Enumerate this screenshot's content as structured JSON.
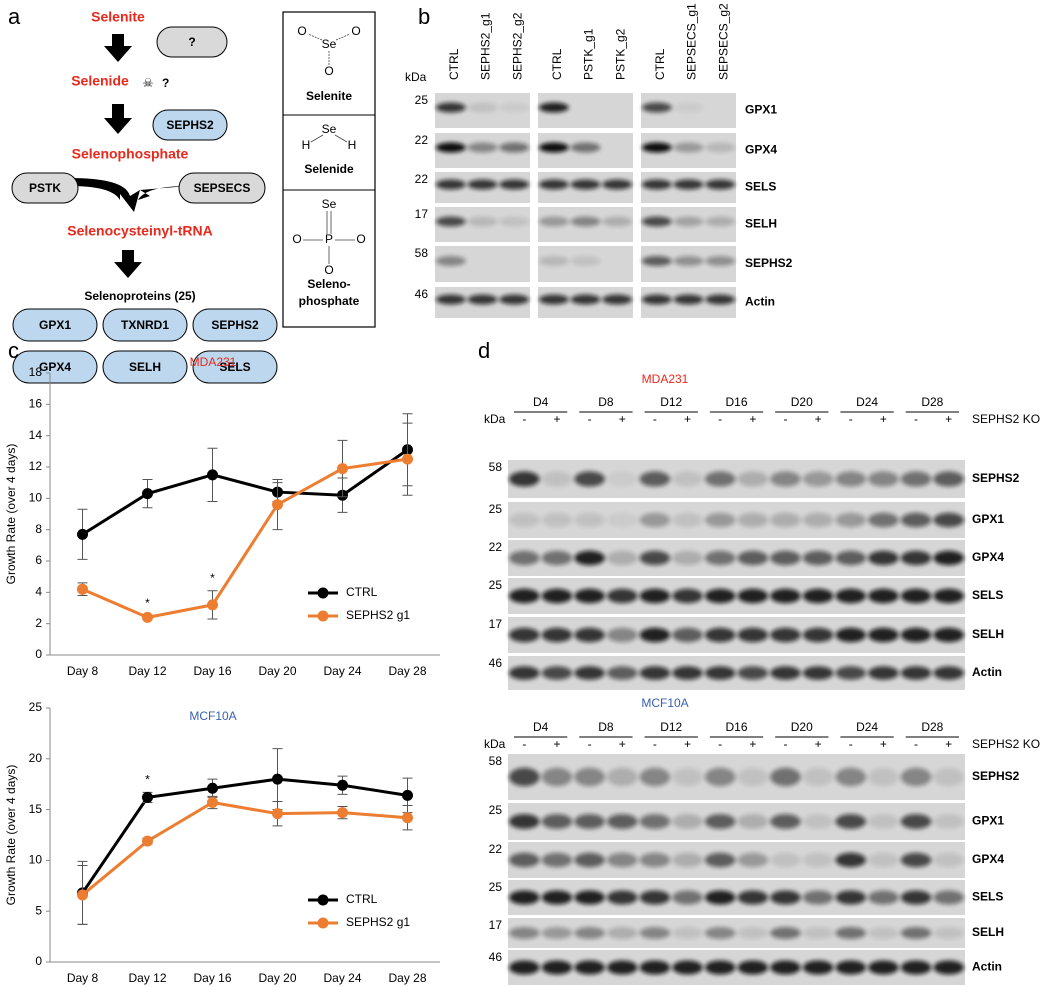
{
  "panel_a": {
    "label": "a",
    "steps": [
      "Selenite",
      "Selenide",
      "Selenophosphate",
      "Selenocysteinyl-tRNA",
      "Selenoproteins (25)"
    ],
    "unknown": "?",
    "toxic_mark": "?",
    "enzymes": [
      "SEPHS2",
      "PSTK",
      "SEPSECS"
    ],
    "selenoproteins": [
      "GPX1",
      "TXNRD1",
      "SEPHS2",
      "GPX4",
      "SELH",
      "SELS"
    ],
    "structures": [
      {
        "name": [
          "Selenite"
        ],
        "atoms": [
          "Se",
          "O",
          "O",
          "O"
        ]
      },
      {
        "name": [
          "Selenide"
        ],
        "atoms": [
          "Se",
          "H",
          "H"
        ]
      },
      {
        "name": [
          "Seleno-",
          "phosphate"
        ],
        "atoms": [
          "Se",
          "P",
          "O",
          "O",
          "O"
        ]
      }
    ]
  },
  "panel_b": {
    "label": "b",
    "kda": "kDa",
    "groups": [
      [
        "CTRL",
        "SEPHS2_g1",
        "SEPHS2_g2"
      ],
      [
        "CTRL",
        "PSTK_g1",
        "PSTK_g2"
      ],
      [
        "CTRL",
        "SEPSECS_g1",
        "SEPSECS_g2"
      ]
    ],
    "rows": [
      {
        "protein": "GPX1",
        "marker": 25
      },
      {
        "protein": "GPX4",
        "marker": 22
      },
      {
        "protein": "SELS",
        "marker": 22
      },
      {
        "protein": "SELH",
        "marker": 17
      },
      {
        "protein": "SEPHS2",
        "marker": 58
      },
      {
        "protein": "Actin",
        "marker": 46
      }
    ]
  },
  "panel_c": {
    "label": "c"
  },
  "chart_data": [
    {
      "type": "line",
      "title": "MDA231",
      "title_color": "#e8291c",
      "ylabel": "Growth Rate (over 4 days)",
      "categories": [
        "Day 8",
        "Day 12",
        "Day 16",
        "Day 20",
        "Day 24",
        "Day 28"
      ],
      "series": [
        {
          "name": "CTRL",
          "color": "#000000",
          "values": [
            7.7,
            10.3,
            11.5,
            10.4,
            10.2,
            13.1
          ],
          "errors": [
            1.6,
            0.9,
            1.7,
            0.6,
            1.1,
            2.3
          ]
        },
        {
          "name": "SEPHS2 g1",
          "color": "#ed7d31",
          "values": [
            4.2,
            2.4,
            3.2,
            9.6,
            11.9,
            12.5
          ],
          "errors": [
            0.4,
            0.1,
            0.9,
            1.6,
            1.8,
            2.3
          ]
        }
      ],
      "ylim": [
        0,
        18
      ],
      "yticks": [
        0,
        2,
        4,
        6,
        8,
        10,
        12,
        14,
        16,
        18
      ],
      "legend": "lower right",
      "annotations": [
        {
          "text": "*",
          "x": "Day 12",
          "series": "SEPHS2 g1"
        },
        {
          "text": "*",
          "x": "Day 16",
          "series": "SEPHS2 g1"
        }
      ]
    },
    {
      "type": "line",
      "title": "MCF10A",
      "title_color": "#3a5fb0",
      "ylabel": "Growth Rate (over 4 days)",
      "categories": [
        "Day 8",
        "Day 12",
        "Day 16",
        "Day 20",
        "Day 24",
        "Day 28"
      ],
      "series": [
        {
          "name": "CTRL",
          "color": "#000000",
          "values": [
            6.8,
            16.2,
            17.1,
            18.0,
            17.4,
            16.4
          ],
          "errors": [
            3.1,
            0.5,
            0.9,
            3.0,
            0.9,
            1.7
          ]
        },
        {
          "name": "SEPHS2 g1",
          "color": "#ed7d31",
          "values": [
            6.6,
            11.9,
            15.7,
            14.6,
            14.7,
            14.2
          ],
          "errors": [
            2.9,
            0.3,
            0.6,
            1.2,
            0.6,
            1.2
          ]
        }
      ],
      "ylim": [
        0,
        25
      ],
      "yticks": [
        0,
        5,
        10,
        15,
        20,
        25
      ],
      "legend": "lower right",
      "annotations": [
        {
          "text": "*",
          "x": "Day 12",
          "series": "CTRL"
        }
      ]
    }
  ],
  "panel_d": {
    "label": "d",
    "blots": [
      {
        "title": "MDA231",
        "title_color": "#e8291c",
        "days": [
          "D4",
          "D8",
          "D12",
          "D16",
          "D20",
          "D24",
          "D28"
        ],
        "conditions": [
          "-",
          "+"
        ],
        "condition_label": "SEPHS2 KO",
        "kda": "kDa",
        "rows": [
          {
            "protein": "SEPHS2",
            "marker": 58
          },
          {
            "protein": "GPX1",
            "marker": 25
          },
          {
            "protein": "GPX4",
            "marker": 22
          },
          {
            "protein": "SELS",
            "marker": 25
          },
          {
            "protein": "SELH",
            "marker": 17
          },
          {
            "protein": "Actin",
            "marker": 46
          }
        ]
      },
      {
        "title": "MCF10A",
        "title_color": "#3a5fb0",
        "days": [
          "D4",
          "D8",
          "D12",
          "D16",
          "D20",
          "D24",
          "D28"
        ],
        "conditions": [
          "-",
          "+"
        ],
        "condition_label": "SEPHS2 KO",
        "kda": "kDa",
        "rows": [
          {
            "protein": "SEPHS2",
            "marker": 58
          },
          {
            "protein": "GPX1",
            "marker": 25
          },
          {
            "protein": "GPX4",
            "marker": 22
          },
          {
            "protein": "SELS",
            "marker": 25
          },
          {
            "protein": "SELH",
            "marker": 17
          },
          {
            "protein": "Actin",
            "marker": 46
          }
        ]
      }
    ]
  }
}
